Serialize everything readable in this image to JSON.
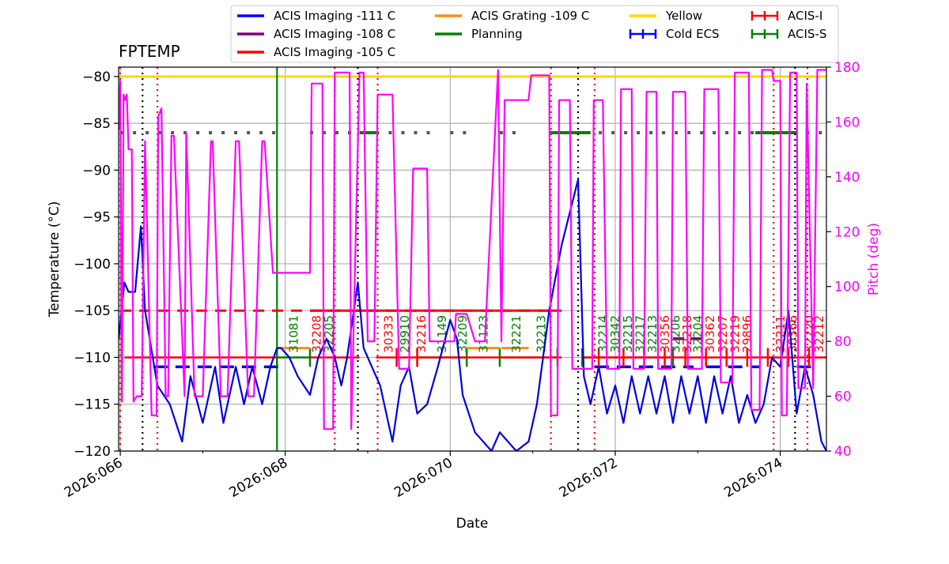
{
  "chart_data": {
    "type": "line",
    "title": "FPTEMP",
    "xlabel": "Date",
    "ylabel": "Temperature (°C)",
    "y2label": "Pitch (deg)",
    "xlim": [
      65.98,
      74.56
    ],
    "ylim": [
      -120,
      -79
    ],
    "y2lim": [
      40,
      180
    ],
    "x_ticks": [
      {
        "value": 66,
        "label": "2026:066"
      },
      {
        "value": 68,
        "label": "2026:068"
      },
      {
        "value": 70,
        "label": "2026:070"
      },
      {
        "value": 72,
        "label": "2026:072"
      },
      {
        "value": 74,
        "label": "2026:074"
      }
    ],
    "y_ticks": [
      {
        "value": -80,
        "label": "−80"
      },
      {
        "value": -85,
        "label": "−85"
      },
      {
        "value": -90,
        "label": "−90"
      },
      {
        "value": -95,
        "label": "−95"
      },
      {
        "value": -100,
        "label": "−100"
      },
      {
        "value": -105,
        "label": "−105"
      },
      {
        "value": -110,
        "label": "−110"
      },
      {
        "value": -115,
        "label": "−115"
      },
      {
        "value": -120,
        "label": "−120"
      }
    ],
    "y2_ticks": [
      {
        "value": 40,
        "label": "40"
      },
      {
        "value": 60,
        "label": "60"
      },
      {
        "value": 80,
        "label": "80"
      },
      {
        "value": 100,
        "label": "100"
      },
      {
        "value": 120,
        "label": "120"
      },
      {
        "value": 140,
        "label": "140"
      },
      {
        "value": 160,
        "label": "160"
      },
      {
        "value": 180,
        "label": "180"
      }
    ],
    "legend": [
      {
        "label": "ACIS Imaging -111 C",
        "color": "#0000ff",
        "marker": "line"
      },
      {
        "label": "ACIS Imaging -108 C",
        "color": "#800080",
        "marker": "line"
      },
      {
        "label": "ACIS Imaging -105 C",
        "color": "#ff0000",
        "marker": "line"
      },
      {
        "label": "ACIS Grating -109 C",
        "color": "#ff8c1a",
        "marker": "line"
      },
      {
        "label": "Planning",
        "color": "#008000",
        "marker": "line"
      },
      {
        "label": "Yellow",
        "color": "#ffd700",
        "marker": "line"
      },
      {
        "label": "Cold ECS",
        "color": "#0000ff",
        "marker": "errorbar"
      },
      {
        "label": "ACIS-I",
        "color": "#ff0000",
        "marker": "errorbar"
      },
      {
        "label": "ACIS-S",
        "color": "#008000",
        "marker": "errorbar"
      }
    ],
    "yellow_limit": -80,
    "colors": {
      "temp": "#0000dd",
      "pitch": "#ff00ff",
      "yellow": "#ffd700",
      "planning": "#008000",
      "acis_i": "#ff0000",
      "acis_s": "#008000",
      "grating": "#ff8c1a",
      "imaging111": "#0000ff",
      "imaging108": "#800080",
      "dash_black": "#000000",
      "dash_red": "#ff0000",
      "grid": "#b0b0b0"
    },
    "series": [
      {
        "name": "FPTEMP",
        "axis": "left",
        "x": [
          65.98,
          66.05,
          66.1,
          66.18,
          66.25,
          66.3,
          66.45,
          66.6,
          66.75,
          66.85,
          67.0,
          67.15,
          67.25,
          67.4,
          67.5,
          67.6,
          67.72,
          67.82,
          67.9,
          67.95,
          68.05,
          68.15,
          68.3,
          68.4,
          68.5,
          68.6,
          68.68,
          68.75,
          68.88,
          68.95,
          69.05,
          69.15,
          69.3,
          69.4,
          69.5,
          69.6,
          69.72,
          69.85,
          70.0,
          70.08,
          70.15,
          70.3,
          70.5,
          70.6,
          70.7,
          70.8,
          70.95,
          71.05,
          71.2,
          71.35,
          71.55,
          71.62,
          71.7,
          71.8,
          71.9,
          72.0,
          72.1,
          72.2,
          72.3,
          72.4,
          72.5,
          72.6,
          72.7,
          72.8,
          72.9,
          73.0,
          73.1,
          73.2,
          73.3,
          73.4,
          73.5,
          73.6,
          73.7,
          73.8,
          73.9,
          74.0,
          74.1,
          74.2,
          74.3,
          74.4,
          74.5,
          74.56
        ],
        "y": [
          -108,
          -102,
          -103,
          -103,
          -96,
          -105,
          -113,
          -115,
          -119,
          -112,
          -117,
          -111,
          -117,
          -111,
          -115,
          -111,
          -115,
          -111,
          -109,
          -109,
          -110,
          -112,
          -114,
          -110,
          -108,
          -110,
          -113,
          -110,
          -102,
          -109,
          -111,
          -113,
          -119,
          -113,
          -111,
          -116,
          -115,
          -111,
          -106,
          -108,
          -114,
          -118,
          -120,
          -118,
          -119,
          -120,
          -119,
          -115,
          -105,
          -98,
          -91,
          -112,
          -115,
          -111,
          -116,
          -113,
          -117,
          -112,
          -116,
          -112,
          -116,
          -112,
          -117,
          -112,
          -116,
          -112,
          -117,
          -112,
          -116,
          -112,
          -117,
          -114,
          -117,
          -115,
          -110,
          -111,
          -105,
          -116,
          -111,
          -114,
          -119,
          -120
        ]
      },
      {
        "name": "Pitch",
        "axis": "right",
        "x": [
          65.98,
          66.0,
          66.02,
          66.04,
          66.06,
          66.08,
          66.1,
          66.14,
          66.16,
          66.2,
          66.26,
          66.3,
          66.38,
          66.44,
          66.46,
          66.5,
          66.55,
          66.58,
          66.62,
          66.65,
          66.78,
          66.8,
          66.9,
          67.0,
          67.1,
          67.12,
          67.22,
          67.3,
          67.4,
          67.44,
          67.55,
          67.62,
          67.72,
          67.75,
          67.85,
          67.88,
          68.3,
          68.32,
          68.45,
          68.47,
          68.58,
          68.6,
          68.78,
          68.8,
          68.9,
          68.95,
          69.0,
          69.08,
          69.12,
          69.3,
          69.38,
          69.5,
          69.55,
          69.72,
          69.75,
          70.05,
          70.07,
          70.2,
          70.3,
          70.42,
          70.58,
          70.62,
          70.66,
          70.95,
          70.98,
          71.2,
          71.22,
          71.3,
          71.32,
          71.45,
          71.48,
          71.72,
          71.74,
          71.85,
          71.9,
          72.05,
          72.07,
          72.2,
          72.22,
          72.35,
          72.38,
          72.5,
          72.52,
          72.68,
          72.7,
          72.85,
          72.88,
          73.05,
          73.08,
          73.25,
          73.28,
          73.42,
          73.45,
          73.62,
          73.65,
          73.75,
          73.78,
          73.9,
          73.92,
          74.0,
          74.02,
          74.08,
          74.12,
          74.2,
          74.22,
          74.3,
          74.32,
          74.4,
          74.45,
          74.5,
          74.53,
          74.56
        ],
        "y": [
          157,
          175,
          58,
          170,
          168,
          170,
          150,
          150,
          58,
          60,
          60,
          153,
          53,
          53,
          162,
          165,
          60,
          60,
          155,
          155,
          60,
          156,
          60,
          60,
          153,
          153,
          60,
          60,
          153,
          153,
          60,
          60,
          153,
          153,
          105,
          105,
          105,
          174,
          174,
          48,
          48,
          178,
          178,
          48,
          178,
          178,
          80,
          80,
          170,
          170,
          70,
          70,
          143,
          143,
          80,
          80,
          90,
          90,
          80,
          80,
          179,
          80,
          168,
          168,
          177,
          177,
          53,
          53,
          168,
          168,
          70,
          70,
          168,
          168,
          70,
          70,
          172,
          172,
          70,
          70,
          171,
          171,
          70,
          70,
          171,
          171,
          70,
          70,
          172,
          172,
          65,
          65,
          178,
          178,
          55,
          55,
          179,
          179,
          175,
          175,
          53,
          53,
          178,
          178,
          63,
          63,
          174,
          63,
          179,
          179,
          179,
          179
        ]
      }
    ],
    "grating_segments": [
      [
        67.9,
        68.3
      ],
      [
        70.2,
        70.6
      ],
      [
        70.62,
        70.95
      ]
    ],
    "imaging111_segments": [
      [
        66.4,
        67.95
      ],
      [
        71.75,
        72.95
      ],
      [
        73.1,
        73.75
      ],
      [
        74.2,
        74.45
      ]
    ],
    "imaging108_segments": [
      [
        72.7,
        73.1
      ]
    ],
    "acis_i_segments": [
      [
        66.05,
        67.9
      ],
      [
        68.3,
        68.9
      ],
      [
        69.1,
        71.35
      ],
      [
        71.6,
        74.56
      ]
    ],
    "acis_s_segments": [
      [
        67.9,
        68.3
      ],
      [
        69.6,
        70.2
      ],
      [
        70.6,
        71.3
      ],
      [
        71.6,
        72.7
      ]
    ],
    "planning_level": -86,
    "planning_segments": [
      [
        66.0,
        67.9
      ],
      [
        68.3,
        68.9
      ],
      [
        69.1,
        69.8
      ],
      [
        70.0,
        70.3
      ],
      [
        70.6,
        70.9
      ],
      [
        71.2,
        71.7
      ],
      [
        71.8,
        73.7
      ],
      [
        73.7,
        74.56
      ]
    ],
    "dashed_black_lines": [
      66.27,
      68.88,
      71.55,
      74.18
    ],
    "dashed_red_lines": [
      66.0,
      66.45,
      68.6,
      69.12,
      71.22,
      71.75,
      73.92,
      74.33
    ],
    "solid_green_vline": 67.9,
    "obsid_labels": [
      {
        "x": 68.15,
        "text": "31081",
        "color": "#008000"
      },
      {
        "x": 68.43,
        "text": "32208",
        "color": "#ff0000"
      },
      {
        "x": 68.58,
        "text": "32205",
        "color": "#008000"
      },
      {
        "x": 69.3,
        "text": "30333",
        "color": "#ff0000"
      },
      {
        "x": 69.5,
        "text": "29910",
        "color": "#008000"
      },
      {
        "x": 69.7,
        "text": "32216",
        "color": "#ff0000"
      },
      {
        "x": 69.95,
        "text": "31149",
        "color": "#008000"
      },
      {
        "x": 70.2,
        "text": "32209",
        "color": "#008000"
      },
      {
        "x": 70.45,
        "text": "31123",
        "color": "#008000"
      },
      {
        "x": 70.85,
        "text": "32221",
        "color": "#008000"
      },
      {
        "x": 71.15,
        "text": "32213",
        "color": "#008000"
      },
      {
        "x": 71.9,
        "text": "32214",
        "color": "#008000"
      },
      {
        "x": 72.05,
        "text": "30342",
        "color": "#008000"
      },
      {
        "x": 72.2,
        "text": "32215",
        "color": "#008000"
      },
      {
        "x": 72.35,
        "text": "32217",
        "color": "#008000"
      },
      {
        "x": 72.5,
        "text": "32213",
        "color": "#008000"
      },
      {
        "x": 72.65,
        "text": "30356",
        "color": "#ff0000"
      },
      {
        "x": 72.78,
        "text": "32206",
        "color": "#008000"
      },
      {
        "x": 72.92,
        "text": "32218",
        "color": "#ff0000"
      },
      {
        "x": 73.05,
        "text": "32204",
        "color": "#008000"
      },
      {
        "x": 73.2,
        "text": "30362",
        "color": "#ff0000"
      },
      {
        "x": 73.35,
        "text": "32207",
        "color": "#ff0000"
      },
      {
        "x": 73.5,
        "text": "32219",
        "color": "#ff0000"
      },
      {
        "x": 73.65,
        "text": "29896",
        "color": "#ff0000"
      },
      {
        "x": 74.05,
        "text": "32211",
        "color": "#ff0000"
      },
      {
        "x": 74.2,
        "text": "30366",
        "color": "#ff0000"
      },
      {
        "x": 74.4,
        "text": "32220",
        "color": "#ff0000"
      },
      {
        "x": 74.52,
        "text": "32212",
        "color": "#ff0000"
      }
    ]
  }
}
